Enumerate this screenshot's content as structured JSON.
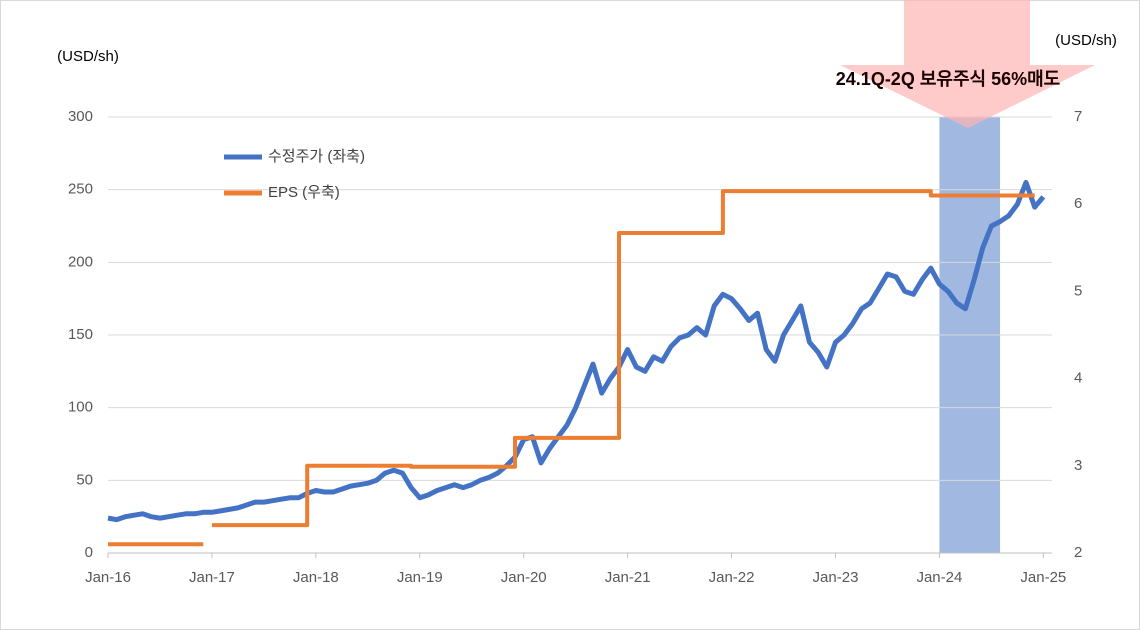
{
  "chart_data": {
    "type": "line",
    "annotation": "24.1Q-2Q 보유주식 56%매도",
    "y_label": "(USD/sh)",
    "y2_label": "(USD/sh)",
    "xlim": [
      "2016-01",
      "2025-02"
    ],
    "xticks": [
      {
        "value": "2016-01",
        "label": "Jan-16"
      },
      {
        "value": "2017-01",
        "label": "Jan-17"
      },
      {
        "value": "2018-01",
        "label": "Jan-18"
      },
      {
        "value": "2019-01",
        "label": "Jan-19"
      },
      {
        "value": "2020-01",
        "label": "Jan-20"
      },
      {
        "value": "2021-01",
        "label": "Jan-21"
      },
      {
        "value": "2022-01",
        "label": "Jan-22"
      },
      {
        "value": "2023-01",
        "label": "Jan-23"
      },
      {
        "value": "2024-01",
        "label": "Jan-24"
      },
      {
        "value": "2025-01",
        "label": "Jan-25"
      }
    ],
    "ylim": [
      0,
      300
    ],
    "yticks": [
      0,
      50,
      100,
      150,
      200,
      250,
      300
    ],
    "y2lim": [
      2,
      7
    ],
    "y2ticks": [
      2,
      3,
      4,
      5,
      6,
      7
    ],
    "grid": true,
    "highlight": {
      "x": [
        "2024-01",
        "2024-08"
      ],
      "color": "#4472c4"
    },
    "series": [
      {
        "name": "수정주가 (좌축)",
        "color": "#4472c4",
        "x": [
          "2016-01",
          "2016-02",
          "2016-03",
          "2016-04",
          "2016-05",
          "2016-06",
          "2016-07",
          "2016-08",
          "2016-09",
          "2016-10",
          "2016-11",
          "2016-12",
          "2017-01",
          "2017-02",
          "2017-03",
          "2017-04",
          "2017-05",
          "2017-06",
          "2017-07",
          "2017-08",
          "2017-09",
          "2017-10",
          "2017-11",
          "2017-12",
          "2018-01",
          "2018-02",
          "2018-03",
          "2018-04",
          "2018-05",
          "2018-06",
          "2018-07",
          "2018-08",
          "2018-09",
          "2018-10",
          "2018-11",
          "2018-12",
          "2019-01",
          "2019-02",
          "2019-03",
          "2019-04",
          "2019-05",
          "2019-06",
          "2019-07",
          "2019-08",
          "2019-09",
          "2019-10",
          "2019-11",
          "2019-12",
          "2020-01",
          "2020-02",
          "2020-03",
          "2020-04",
          "2020-05",
          "2020-06",
          "2020-07",
          "2020-08",
          "2020-09",
          "2020-10",
          "2020-11",
          "2020-12",
          "2021-01",
          "2021-02",
          "2021-03",
          "2021-04",
          "2021-05",
          "2021-06",
          "2021-07",
          "2021-08",
          "2021-09",
          "2021-10",
          "2021-11",
          "2021-12",
          "2022-01",
          "2022-02",
          "2022-03",
          "2022-04",
          "2022-05",
          "2022-06",
          "2022-07",
          "2022-08",
          "2022-09",
          "2022-10",
          "2022-11",
          "2022-12",
          "2023-01",
          "2023-02",
          "2023-03",
          "2023-04",
          "2023-05",
          "2023-06",
          "2023-07",
          "2023-08",
          "2023-09",
          "2023-10",
          "2023-11",
          "2023-12",
          "2024-01",
          "2024-02",
          "2024-03",
          "2024-04",
          "2024-05",
          "2024-06",
          "2024-07",
          "2024-08",
          "2024-09",
          "2024-10",
          "2024-11",
          "2024-12",
          "2025-01"
        ],
        "values": [
          24,
          23,
          25,
          26,
          27,
          25,
          24,
          25,
          26,
          27,
          27,
          28,
          28,
          29,
          30,
          31,
          33,
          35,
          35,
          36,
          37,
          38,
          38,
          41,
          43,
          42,
          42,
          44,
          46,
          47,
          48,
          50,
          55,
          57,
          55,
          45,
          38,
          40,
          43,
          45,
          47,
          45,
          47,
          50,
          52,
          55,
          60,
          66,
          78,
          80,
          62,
          72,
          80,
          88,
          100,
          115,
          130,
          110,
          120,
          128,
          140,
          128,
          125,
          135,
          132,
          142,
          148,
          150,
          155,
          150,
          170,
          178,
          175,
          168,
          160,
          165,
          140,
          132,
          150,
          160,
          170,
          145,
          138,
          128,
          145,
          150,
          158,
          168,
          172,
          182,
          192,
          190,
          180,
          178,
          188,
          196,
          185,
          180,
          172,
          168,
          188,
          210,
          225,
          228,
          232,
          240,
          255,
          238,
          245
        ]
      },
      {
        "name": "EPS (우축)",
        "color": "#ed7d31",
        "axis": "y2",
        "x": [
          "2016-01",
          "2016-12",
          "2016-12",
          "2017-01",
          "2017-12",
          "2017-12",
          "2018-12",
          "2018-12",
          "2019-12",
          "2019-12",
          "2020-12",
          "2020-12",
          "2021-12",
          "2021-12",
          "2023-12",
          "2023-12",
          "2024-12"
        ],
        "values": [
          2.1,
          2.1,
          null,
          2.32,
          2.32,
          3.0,
          3.0,
          2.99,
          2.99,
          3.32,
          3.32,
          5.67,
          5.67,
          6.15,
          6.15,
          6.1,
          6.1
        ]
      }
    ]
  }
}
